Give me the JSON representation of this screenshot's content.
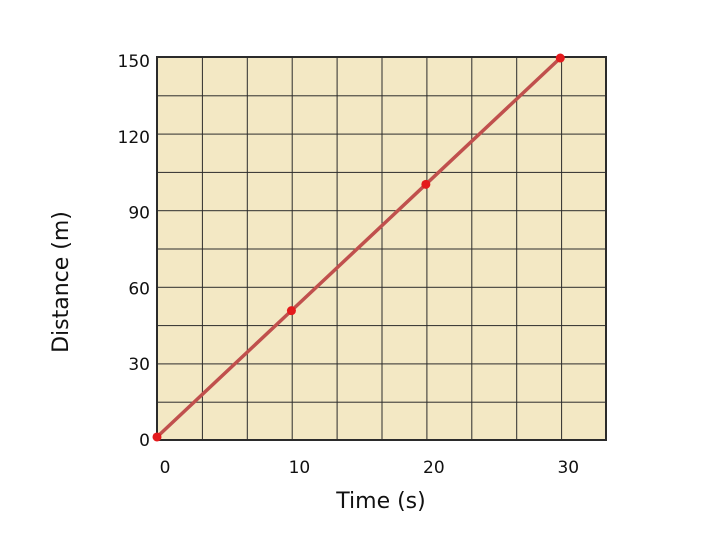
{
  "chart_data": {
    "type": "line",
    "x_label": "Time  (s)",
    "y_label": "Distance (m)",
    "x": [
      0,
      10,
      20,
      30
    ],
    "series": [
      {
        "color": "#c0504d",
        "marker_color": "#e41a1c",
        "values": [
          0,
          50,
          100,
          150
        ]
      }
    ],
    "xlim": [
      0,
      33.4
    ],
    "ylim": [
      -1.2,
      150.4
    ],
    "xticks": [
      0,
      10,
      20,
      30
    ],
    "yticks": [
      0,
      30,
      60,
      90,
      120,
      150
    ]
  }
}
